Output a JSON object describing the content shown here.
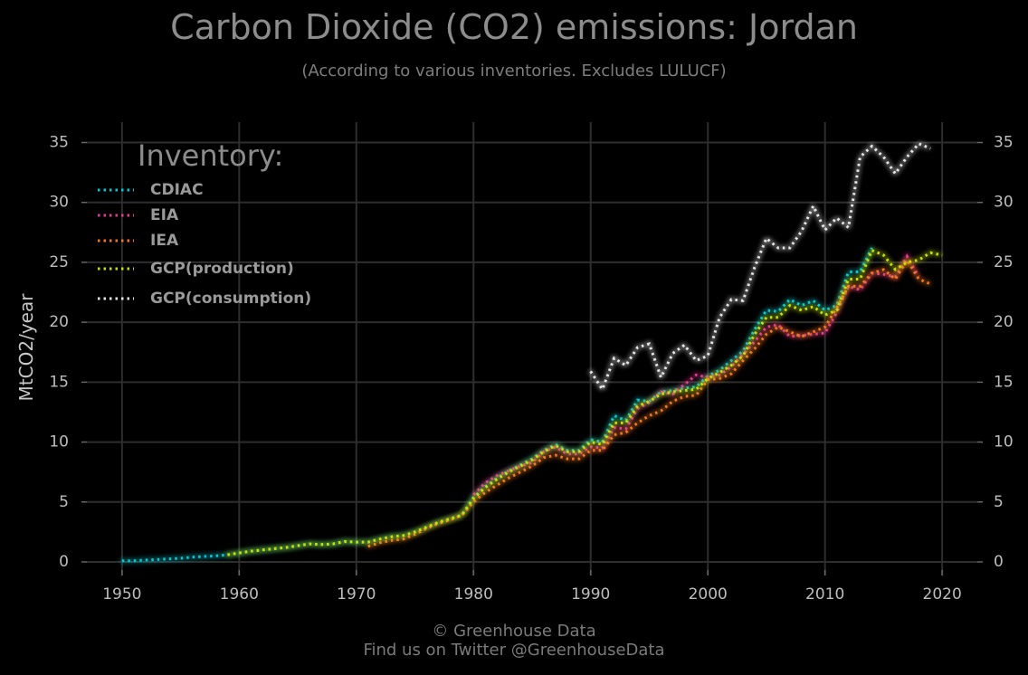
{
  "header": {
    "title": "Carbon Dioxide (CO2) emissions: Jordan",
    "subtitle": "(According to various inventories. Excludes LULUCF)"
  },
  "footer": {
    "line1": "© Greenhouse Data",
    "line2": "Find us on Twitter @GreenhouseData"
  },
  "chart_data": {
    "type": "line",
    "title": "Carbon Dioxide (CO2) emissions: Jordan",
    "subtitle": "(According to various inventories. Excludes LULUCF)",
    "xlabel": "",
    "ylabel": "MtCO2/year",
    "xlim": [
      1947,
      2023
    ],
    "ylim": [
      0,
      36
    ],
    "xticks": [
      1950,
      1960,
      1970,
      1980,
      1990,
      2000,
      2010,
      2020
    ],
    "yticks": [
      0,
      5,
      10,
      15,
      20,
      25,
      30,
      35
    ],
    "grid": true,
    "secondary_y_axis": true,
    "line_style": "dotted",
    "legend": {
      "title": "Inventory:",
      "placement": "top-left"
    },
    "series": [
      {
        "name": "CDIAC",
        "color": "#00c8d2",
        "x": [
          1950,
          1951,
          1952,
          1953,
          1954,
          1955,
          1956,
          1957,
          1958,
          1959,
          1960,
          1961,
          1962,
          1963,
          1964,
          1965,
          1966,
          1967,
          1968,
          1969,
          1970,
          1971,
          1972,
          1973,
          1974,
          1975,
          1976,
          1977,
          1978,
          1979,
          1980,
          1981,
          1982,
          1983,
          1984,
          1985,
          1986,
          1987,
          1988,
          1989,
          1990,
          1991,
          1992,
          1993,
          1994,
          1995,
          1996,
          1997,
          1998,
          1999,
          2000,
          2001,
          2002,
          2003,
          2004,
          2005,
          2006,
          2007,
          2008,
          2009,
          2010,
          2011,
          2012,
          2013,
          2014
        ],
        "y": [
          0.1,
          0.1,
          0.15,
          0.2,
          0.25,
          0.3,
          0.4,
          0.45,
          0.5,
          0.6,
          0.75,
          0.9,
          1.0,
          1.1,
          1.2,
          1.35,
          1.5,
          1.45,
          1.5,
          1.7,
          1.65,
          1.65,
          1.9,
          2.1,
          2.2,
          2.5,
          2.9,
          3.3,
          3.6,
          3.9,
          5.4,
          6.3,
          7.0,
          7.6,
          8.1,
          8.6,
          9.3,
          9.8,
          9.3,
          9.3,
          10.2,
          10.0,
          12.2,
          11.8,
          13.5,
          13.4,
          14.2,
          14.3,
          14.5,
          14.6,
          15.5,
          16.0,
          16.8,
          17.6,
          19.4,
          21.0,
          20.9,
          21.9,
          21.4,
          21.8,
          21.0,
          21.4,
          24.2,
          24.2,
          26.2
        ]
      },
      {
        "name": "EIA",
        "color": "#e03c8c",
        "x": [
          1980,
          1981,
          1982,
          1983,
          1984,
          1985,
          1986,
          1987,
          1988,
          1989,
          1990,
          1991,
          1992,
          1993,
          1994,
          1995,
          1996,
          1997,
          1998,
          1999,
          2000,
          2001,
          2002,
          2003,
          2004,
          2005,
          2006,
          2007,
          2008,
          2009,
          2010,
          2011,
          2012,
          2013,
          2014,
          2015,
          2016,
          2017,
          2018
        ],
        "y": [
          5.6,
          6.6,
          7.2,
          7.6,
          8.0,
          8.3,
          9.2,
          9.6,
          9.0,
          9.0,
          9.6,
          9.5,
          11.2,
          11.1,
          12.8,
          13.3,
          14.2,
          14.0,
          14.8,
          15.6,
          15.4,
          15.6,
          16.3,
          17.3,
          18.4,
          19.6,
          19.8,
          18.8,
          18.9,
          19.0,
          19.1,
          20.8,
          23.0,
          22.7,
          24.1,
          24.0,
          23.8,
          25.5,
          23.8
        ]
      },
      {
        "name": "IEA",
        "color": "#f07820",
        "x": [
          1971,
          1972,
          1973,
          1974,
          1975,
          1976,
          1977,
          1978,
          1979,
          1980,
          1981,
          1982,
          1983,
          1984,
          1985,
          1986,
          1987,
          1988,
          1989,
          1990,
          1991,
          1992,
          1993,
          1994,
          1995,
          1996,
          1997,
          1998,
          1999,
          2000,
          2001,
          2002,
          2003,
          2004,
          2005,
          2006,
          2007,
          2008,
          2009,
          2010,
          2011,
          2012,
          2013,
          2014,
          2015,
          2016,
          2017,
          2018,
          2019
        ],
        "y": [
          1.3,
          1.6,
          1.8,
          1.9,
          2.3,
          2.8,
          3.2,
          3.5,
          3.9,
          5.0,
          5.8,
          6.4,
          7.0,
          7.5,
          8.0,
          8.7,
          8.9,
          8.6,
          8.6,
          9.3,
          9.3,
          10.6,
          10.8,
          11.6,
          12.2,
          12.6,
          13.4,
          13.8,
          13.9,
          15.2,
          15.3,
          15.7,
          16.8,
          17.8,
          19.0,
          19.6,
          19.2,
          18.8,
          19.2,
          19.6,
          21.2,
          23.0,
          23.0,
          24.1,
          24.4,
          23.6,
          25.2,
          23.6,
          23.2
        ]
      },
      {
        "name": "GCP(production)",
        "color": "#c8e000",
        "x": [
          1959,
          1960,
          1961,
          1962,
          1963,
          1964,
          1965,
          1966,
          1967,
          1968,
          1969,
          1970,
          1971,
          1972,
          1973,
          1974,
          1975,
          1976,
          1977,
          1978,
          1979,
          1980,
          1981,
          1982,
          1983,
          1984,
          1985,
          1986,
          1987,
          1988,
          1989,
          1990,
          1991,
          1992,
          1993,
          1994,
          1995,
          1996,
          1997,
          1998,
          1999,
          2000,
          2001,
          2002,
          2003,
          2004,
          2005,
          2006,
          2007,
          2008,
          2009,
          2010,
          2011,
          2012,
          2013,
          2014,
          2015,
          2016,
          2017,
          2018,
          2019,
          2020
        ],
        "y": [
          0.6,
          0.75,
          0.9,
          1.0,
          1.1,
          1.2,
          1.35,
          1.5,
          1.45,
          1.5,
          1.7,
          1.65,
          1.65,
          1.9,
          2.1,
          2.2,
          2.5,
          2.9,
          3.3,
          3.6,
          3.9,
          5.3,
          6.2,
          6.9,
          7.5,
          8.0,
          8.5,
          9.2,
          9.7,
          9.2,
          9.2,
          10.0,
          9.8,
          11.6,
          11.6,
          13.0,
          13.4,
          14.0,
          14.2,
          14.3,
          14.4,
          15.3,
          15.8,
          16.4,
          17.2,
          19.0,
          20.4,
          20.4,
          21.4,
          21.0,
          21.3,
          20.6,
          21.0,
          23.6,
          23.6,
          26.0,
          25.6,
          24.4,
          25.0,
          25.2,
          25.8,
          25.6
        ]
      },
      {
        "name": "GCP(consumption)",
        "color": "#e6e6e6",
        "x": [
          1990,
          1991,
          1992,
          1993,
          1994,
          1995,
          1996,
          1997,
          1998,
          1999,
          2000,
          2001,
          2002,
          2003,
          2004,
          2005,
          2006,
          2007,
          2008,
          2009,
          2010,
          2011,
          2012,
          2013,
          2014,
          2015,
          2016,
          2017,
          2018,
          2019
        ],
        "y": [
          15.9,
          14.4,
          17.0,
          16.4,
          17.9,
          18.2,
          15.4,
          17.4,
          18.1,
          16.8,
          17.2,
          20.4,
          21.9,
          21.8,
          24.6,
          27.0,
          26.2,
          26.2,
          27.6,
          29.7,
          27.7,
          28.7,
          27.9,
          33.8,
          34.7,
          33.8,
          32.4,
          33.8,
          34.9,
          34.5
        ]
      }
    ]
  }
}
